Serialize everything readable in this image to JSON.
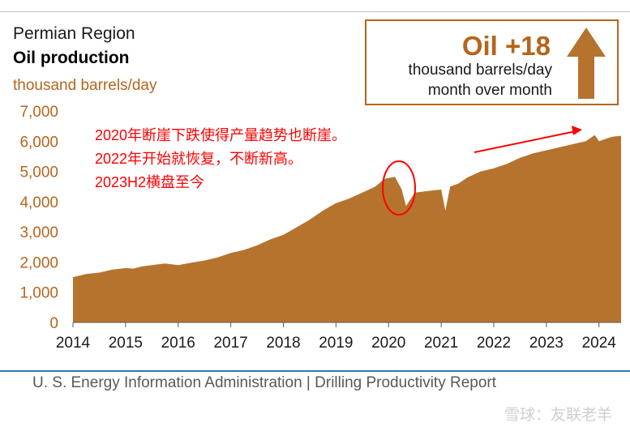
{
  "header": {
    "region": "Permian Region",
    "title": "Oil production",
    "unit": "thousand barrels/day"
  },
  "callout": {
    "headline": "Oil +18",
    "line1": "thousand barrels/day",
    "line2": "month over month",
    "arrow_icon": "up-arrow-icon"
  },
  "annotations": {
    "lines": [
      "2020年断崖下跌使得产量趋势也断崖。",
      "2022年开始就恢复，不断新高。",
      "2023H2横盘至今"
    ]
  },
  "footer": {
    "source": "U. S. Energy Information Administration  |  Drilling Productivity Report"
  },
  "watermark": "雪球：友联老羊",
  "colors": {
    "fill": "#b5732e",
    "accent": "#b5651d",
    "annotation": "#ff0000",
    "rule": "#2f77b5"
  },
  "chart_data": {
    "type": "area",
    "title": "Oil production",
    "ylabel": "thousand barrels/day",
    "xlim": [
      2014.0,
      2024.42
    ],
    "ylim": [
      0,
      7000
    ],
    "yticks": [
      0,
      1000,
      2000,
      3000,
      4000,
      5000,
      6000,
      7000
    ],
    "ytick_labels": [
      "0",
      "1,000",
      "2,000",
      "3,000",
      "4,000",
      "5,000",
      "6,000",
      "7,000"
    ],
    "xticks": [
      2014,
      2015,
      2016,
      2017,
      2018,
      2019,
      2020,
      2021,
      2022,
      2023,
      2024
    ],
    "xtick_labels": [
      "2014",
      "2015",
      "2016",
      "2017",
      "2018",
      "2019",
      "2020",
      "2021",
      "2022",
      "2023",
      "2024"
    ],
    "grid": "none",
    "series": [
      {
        "x": [
          2014.0,
          2014.25,
          2014.5,
          2014.75,
          2015.0,
          2015.15,
          2015.3,
          2015.5,
          2015.75,
          2016.0,
          2016.25,
          2016.5,
          2016.75,
          2017.0,
          2017.25,
          2017.5,
          2017.75,
          2018.0,
          2018.25,
          2018.5,
          2018.75,
          2019.0,
          2019.25,
          2019.5,
          2019.75,
          2019.92,
          2020.0,
          2020.12,
          2020.25,
          2020.33,
          2020.5,
          2020.75,
          2021.0,
          2021.08,
          2021.17,
          2021.33,
          2021.5,
          2021.75,
          2022.0,
          2022.25,
          2022.5,
          2022.75,
          2023.0,
          2023.25,
          2023.5,
          2023.75,
          2023.92,
          2024.0,
          2024.25,
          2024.42
        ],
        "y": [
          1500,
          1600,
          1650,
          1750,
          1800,
          1780,
          1850,
          1900,
          1950,
          1900,
          1980,
          2050,
          2150,
          2300,
          2400,
          2550,
          2750,
          2900,
          3150,
          3400,
          3700,
          3950,
          4100,
          4300,
          4500,
          4750,
          4780,
          4820,
          4400,
          3850,
          4300,
          4350,
          4400,
          3700,
          4500,
          4600,
          4800,
          5000,
          5100,
          5250,
          5450,
          5600,
          5700,
          5800,
          5900,
          6000,
          6200,
          6000,
          6150,
          6180
        ]
      }
    ]
  }
}
